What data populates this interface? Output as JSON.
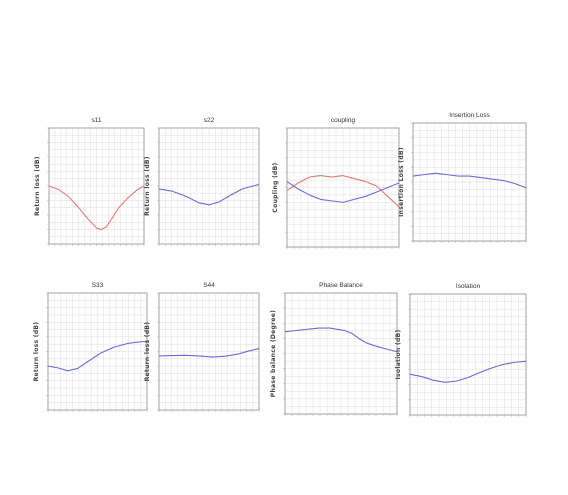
{
  "chart_data": [
    {
      "type": "line",
      "title": "s11",
      "xlabel": "",
      "ylabel": "Return loss (dB)",
      "xlim": [
        1.0,
        4.0
      ],
      "ylim": [
        -40,
        0
      ],
      "grid": true,
      "series": [
        {
          "color": "#e07a7a",
          "x": [
            1.0,
            1.3,
            1.6,
            1.9,
            2.2,
            2.5,
            2.65,
            2.8,
            3.0,
            3.2,
            3.5,
            3.8,
            4.0
          ],
          "y": [
            -20.0,
            -21.2,
            -23.5,
            -27.0,
            -31.0,
            -34.5,
            -35.0,
            -34.2,
            -31.0,
            -27.5,
            -24.0,
            -21.2,
            -20.0
          ]
        }
      ]
    },
    {
      "type": "line",
      "title": "s22",
      "xlabel": "",
      "ylabel": "Return loss (dB)",
      "xlim": [
        1.0,
        4.0
      ],
      "ylim": [
        -40,
        0
      ],
      "grid": true,
      "series": [
        {
          "color": "#6b6bd6",
          "x": [
            1.0,
            1.4,
            1.8,
            2.2,
            2.5,
            2.8,
            3.1,
            3.5,
            4.0
          ],
          "y": [
            -21.0,
            -21.8,
            -23.5,
            -25.8,
            -26.5,
            -25.5,
            -23.5,
            -21.0,
            -19.5
          ]
        }
      ]
    },
    {
      "type": "line",
      "title": "coupling",
      "xlabel": "",
      "ylabel": "Coupling (dB)",
      "xlim": [
        1.0,
        4.0
      ],
      "ylim": [
        -8,
        0
      ],
      "grid": true,
      "series": [
        {
          "color": "#e07a7a",
          "x": [
            1.0,
            1.3,
            1.6,
            1.9,
            2.2,
            2.5,
            2.8,
            3.1,
            3.4,
            3.7,
            4.0
          ],
          "y": [
            -4.2,
            -3.7,
            -3.3,
            -3.2,
            -3.3,
            -3.2,
            -3.4,
            -3.6,
            -3.9,
            -4.6,
            -5.3
          ]
        },
        {
          "color": "#6b6bd6",
          "x": [
            1.0,
            1.3,
            1.6,
            1.9,
            2.2,
            2.5,
            2.8,
            3.1,
            3.4,
            3.7,
            4.0
          ],
          "y": [
            -3.6,
            -4.1,
            -4.5,
            -4.8,
            -4.9,
            -5.0,
            -4.8,
            -4.6,
            -4.3,
            -4.0,
            -3.7
          ]
        }
      ]
    },
    {
      "type": "line",
      "title": "Insertion Loss",
      "xlabel": "",
      "ylabel": "Insertion Loss (dB)",
      "xlim": [
        1.0,
        4.0
      ],
      "ylim": [
        -8,
        0
      ],
      "grid": true,
      "series": [
        {
          "color": "#6b6bd6",
          "x": [
            1.0,
            1.3,
            1.6,
            1.9,
            2.2,
            2.5,
            2.8,
            3.1,
            3.4,
            3.7,
            4.0
          ],
          "y": [
            -3.6,
            -3.5,
            -3.4,
            -3.5,
            -3.6,
            -3.6,
            -3.7,
            -3.8,
            -3.9,
            -4.1,
            -4.4
          ]
        }
      ]
    },
    {
      "type": "line",
      "title": "S33",
      "xlabel": "",
      "ylabel": "Return loss (dB)",
      "xlim": [
        1.0,
        4.0
      ],
      "ylim": [
        -40,
        0
      ],
      "grid": true,
      "series": [
        {
          "color": "#6b6bd6",
          "x": [
            1.0,
            1.3,
            1.6,
            1.9,
            2.2,
            2.6,
            3.0,
            3.4,
            3.7,
            4.0
          ],
          "y": [
            -25.0,
            -25.6,
            -26.6,
            -25.8,
            -23.5,
            -20.5,
            -18.5,
            -17.3,
            -16.8,
            -16.5
          ]
        }
      ]
    },
    {
      "type": "line",
      "title": "S44",
      "xlabel": "",
      "ylabel": "Return loss (dB)",
      "xlim": [
        1.0,
        4.0
      ],
      "ylim": [
        -40,
        0
      ],
      "grid": true,
      "series": [
        {
          "color": "#6b6bd6",
          "x": [
            1.0,
            1.4,
            1.8,
            2.2,
            2.6,
            3.0,
            3.4,
            3.7,
            4.0
          ],
          "y": [
            -21.5,
            -21.4,
            -21.3,
            -21.5,
            -21.9,
            -21.6,
            -20.8,
            -19.8,
            -19.0
          ]
        }
      ]
    },
    {
      "type": "line",
      "title": "Phase Balance",
      "xlabel": "",
      "ylabel": "Phase balance (Degree)",
      "xlim": [
        1.0,
        4.0
      ],
      "ylim": [
        80,
        100
      ],
      "grid": true,
      "series": [
        {
          "color": "#6b6bd6",
          "x": [
            1.0,
            1.3,
            1.6,
            1.9,
            2.2,
            2.4,
            2.6,
            2.8,
            3.0,
            3.2,
            3.5,
            3.8,
            4.0
          ],
          "y": [
            93.6,
            93.8,
            94.0,
            94.2,
            94.2,
            94.0,
            93.8,
            93.3,
            92.4,
            91.7,
            91.1,
            90.6,
            90.3
          ]
        }
      ]
    },
    {
      "type": "line",
      "title": "Isolation",
      "xlabel": "",
      "ylabel": "Isolation (dB)",
      "xlim": [
        1.0,
        4.0
      ],
      "ylim": [
        -40,
        0
      ],
      "grid": true,
      "series": [
        {
          "color": "#6b6bd6",
          "x": [
            1.0,
            1.3,
            1.6,
            1.9,
            2.2,
            2.5,
            2.8,
            3.1,
            3.4,
            3.7,
            4.0
          ],
          "y": [
            -26.5,
            -27.3,
            -28.5,
            -29.2,
            -28.8,
            -27.6,
            -26.0,
            -24.5,
            -23.3,
            -22.6,
            -22.2
          ]
        }
      ]
    }
  ]
}
